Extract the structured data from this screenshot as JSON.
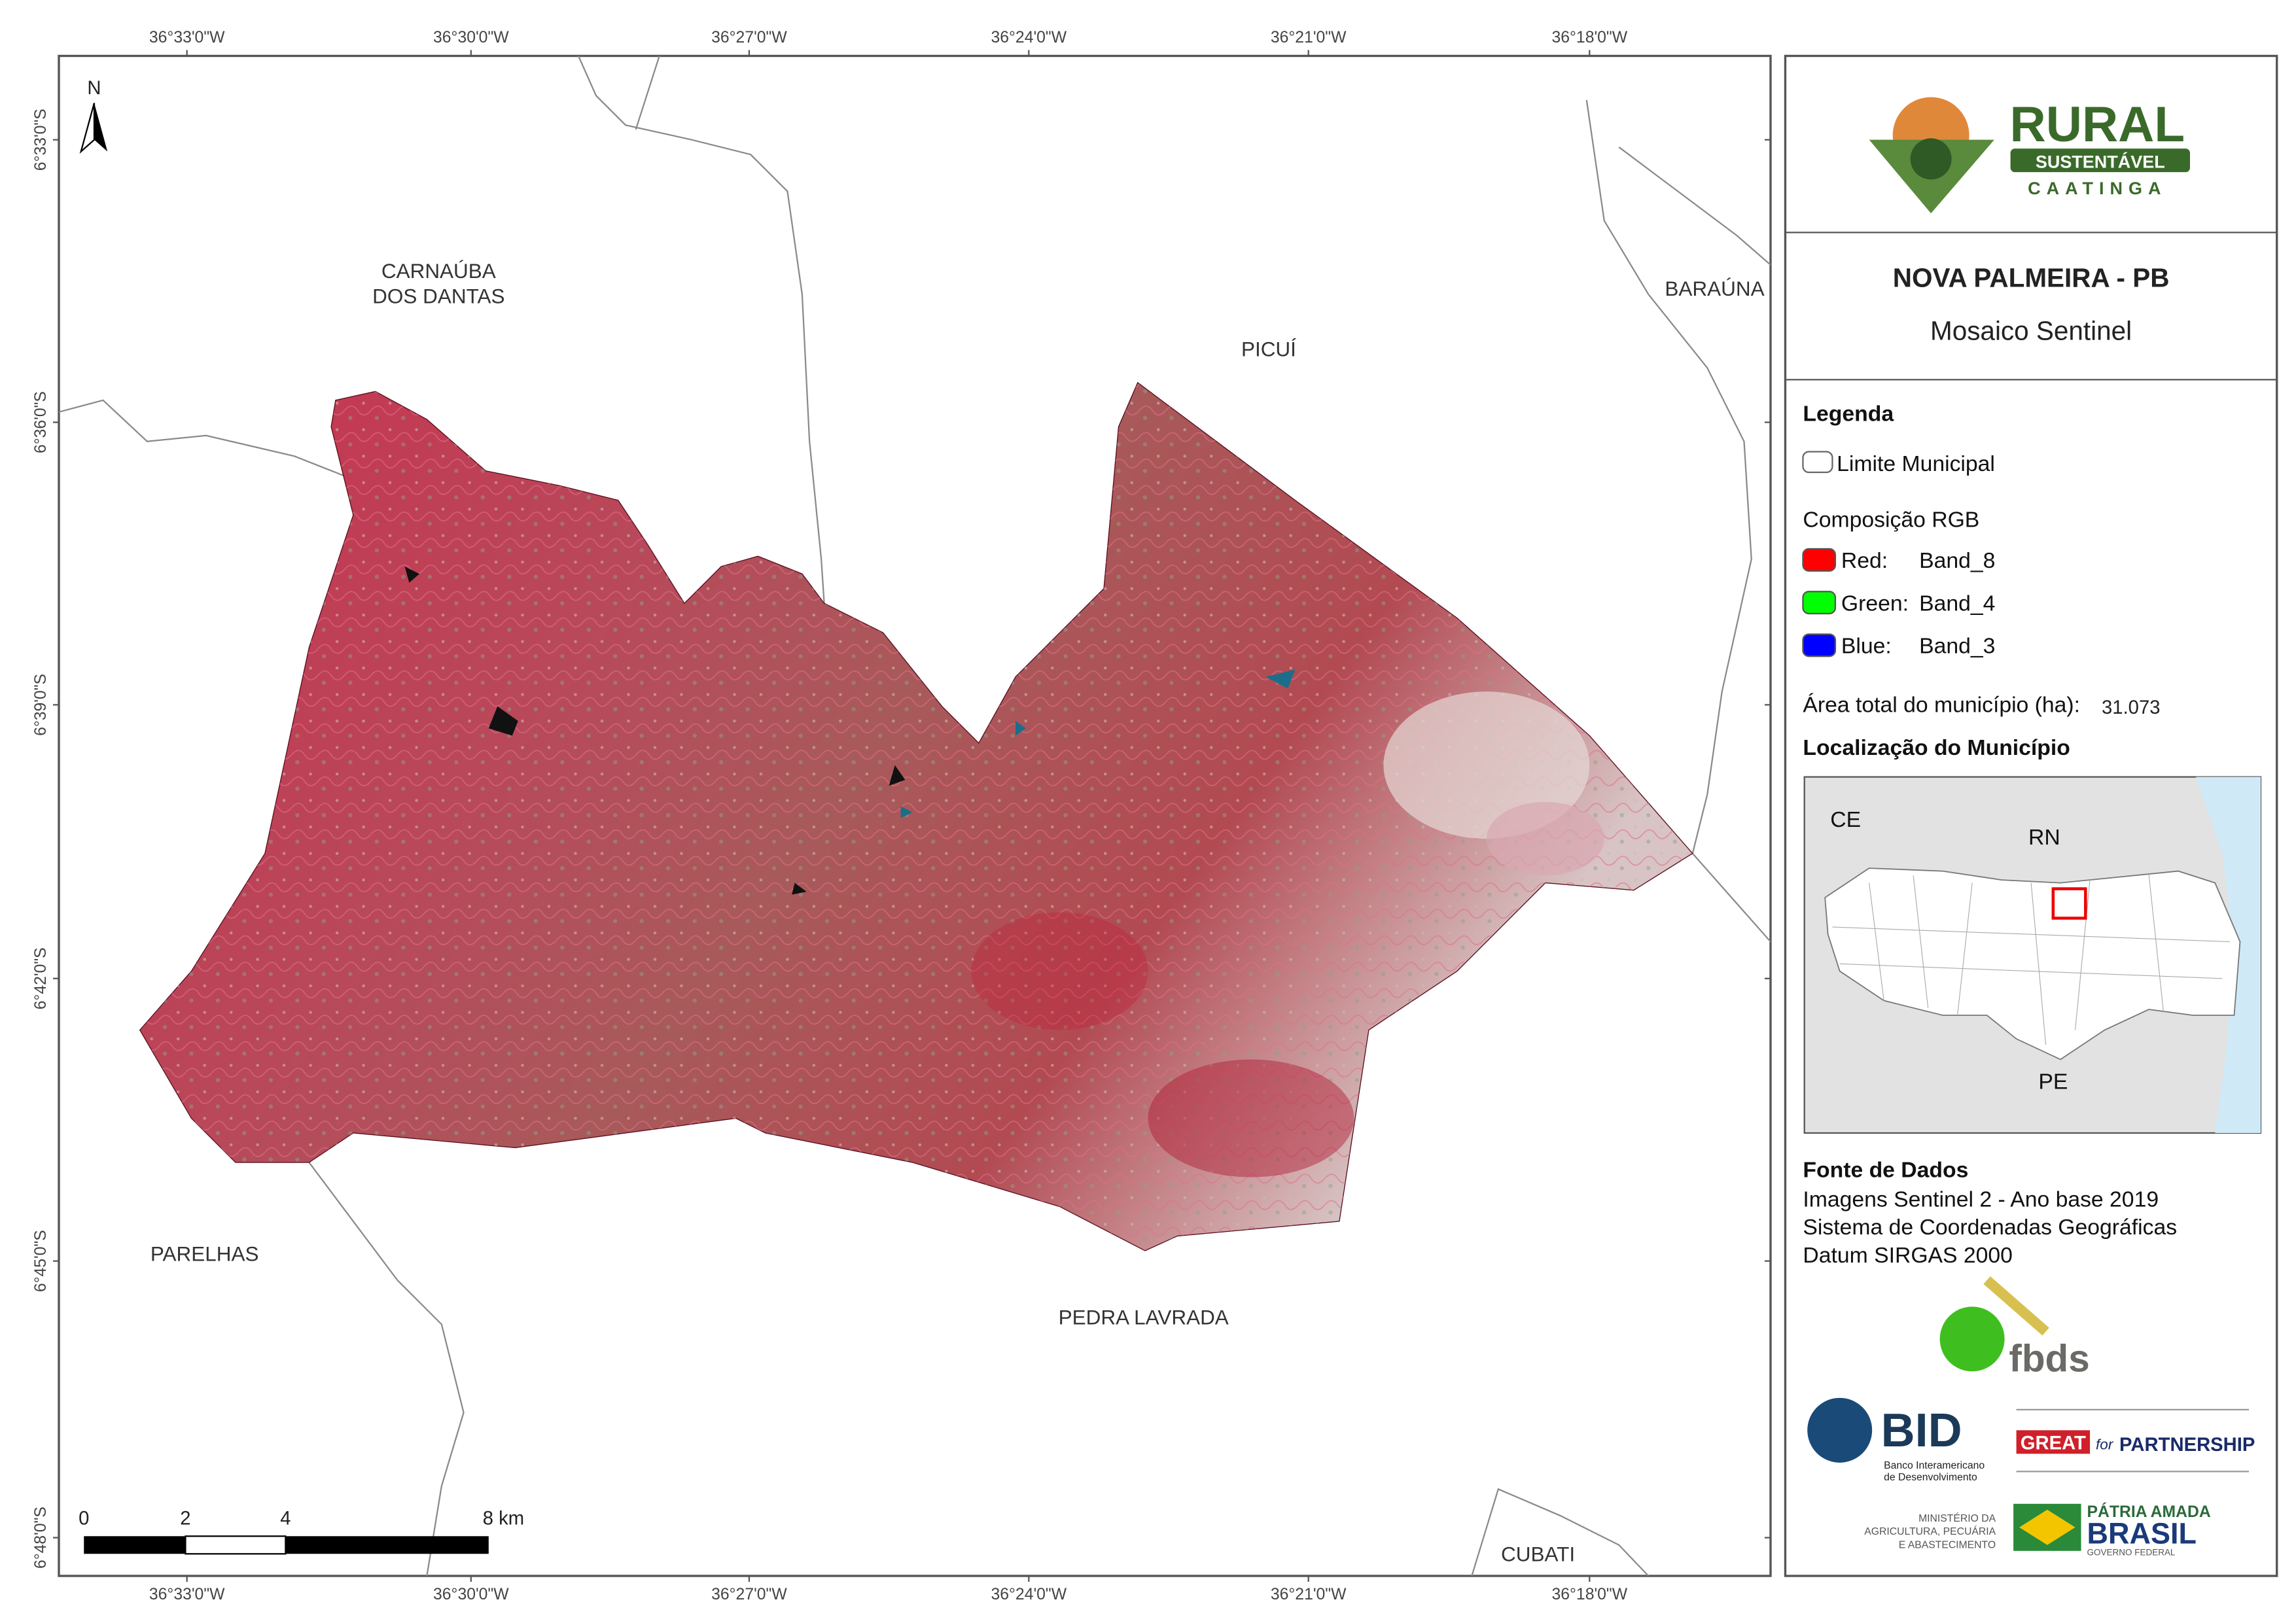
{
  "map": {
    "top_labels": [
      "36°33'0\"W",
      "36°30'0\"W",
      "36°27'0\"W",
      "36°24'0\"W",
      "36°21'0\"W",
      "36°18'0\"W"
    ],
    "bottom_labels": [
      "36°33'0\"W",
      "36°30'0\"W",
      "36°27'0\"W",
      "36°24'0\"W",
      "36°21'0\"W",
      "36°18'0\"W"
    ],
    "left_labels": [
      "6°33'0\"S",
      "6°36'0\"S",
      "6°39'0\"S",
      "6°42'0\"S",
      "6°45'0\"S",
      "6°48'0\"S"
    ],
    "north": "N",
    "neighbors": [
      {
        "lines": [
          "CARNAÚBA",
          "DOS DANTAS"
        ]
      },
      {
        "lines": [
          "PICUÍ"
        ]
      },
      {
        "lines": [
          "BARAÚNA"
        ]
      },
      {
        "lines": [
          "PARELHAS"
        ]
      },
      {
        "lines": [
          "PEDRA LAVRADA"
        ]
      },
      {
        "lines": [
          "CUBATI"
        ]
      }
    ],
    "scale_labels": [
      "0",
      "2",
      "4",
      "8 km"
    ]
  },
  "panel": {
    "logo": {
      "name": "RURAL",
      "sub": "SUSTENTÁVEL",
      "region": "CAATINGA"
    },
    "title": "NOVA PALMEIRA - PB",
    "subtitle": "Mosaico Sentinel",
    "legend": {
      "heading": "Legenda",
      "boundary": "Limite Municipal",
      "rgb_heading": "Composição RGB",
      "bands": [
        {
          "label": "Red:",
          "band": "Band_8",
          "color": "#ff0000"
        },
        {
          "label": "Green:",
          "band": "Band_4",
          "color": "#00ff00"
        },
        {
          "label": "Blue:",
          "band": "Band_3",
          "color": "#0000ff"
        }
      ]
    },
    "area": {
      "label": "Área total do município (ha):",
      "value": "31.073"
    },
    "location": {
      "heading": "Localização do Município",
      "states": [
        "CE",
        "RN",
        "PE"
      ]
    },
    "sources": {
      "heading": "Fonte de Dados",
      "lines": [
        "Imagens Sentinel 2 - Ano base 2019",
        "Sistema de Coordenadas Geográficas",
        "Datum SIRGAS 2000"
      ]
    },
    "partners": {
      "fbds": "fbds",
      "bid": "BID",
      "bid_full": [
        "Banco Interamericano",
        "de Desenvolvimento"
      ],
      "great": "GREAT",
      "great_for": "for",
      "great_partnership": "PARTNERSHIP",
      "ministry": [
        "MINISTÉRIO DA",
        "AGRICULTURA, PECUÁRIA",
        "E ABASTECIMENTO"
      ],
      "brasil_top": "PÁTRIA AMADA",
      "brasil": "BRASIL",
      "brasil_sub": "GOVERNO FEDERAL"
    }
  }
}
